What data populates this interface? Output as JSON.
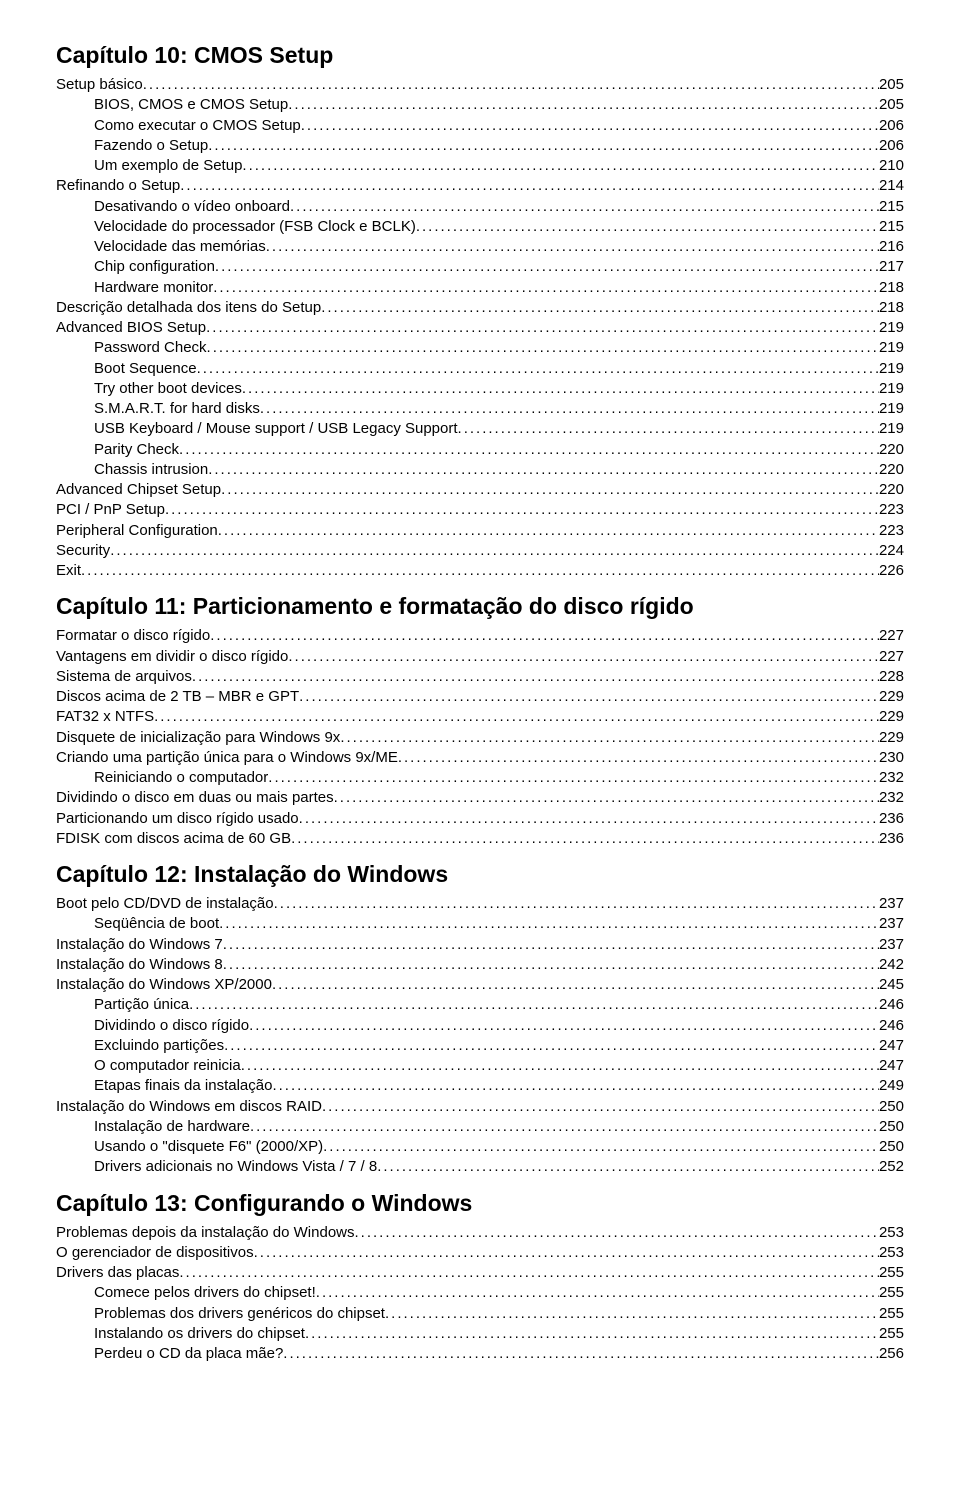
{
  "chapters": [
    {
      "title": "Capítulo 10: CMOS Setup",
      "entries": [
        {
          "label": "Setup básico",
          "page": "205",
          "level": 0
        },
        {
          "label": "BIOS, CMOS e CMOS Setup",
          "page": "205",
          "level": 1
        },
        {
          "label": "Como executar o CMOS Setup",
          "page": "206",
          "level": 1
        },
        {
          "label": "Fazendo o Setup",
          "page": "206",
          "level": 1
        },
        {
          "label": "Um exemplo de Setup",
          "page": "210",
          "level": 1
        },
        {
          "label": "Refinando o Setup",
          "page": "214",
          "level": 0
        },
        {
          "label": "Desativando o vídeo onboard",
          "page": "215",
          "level": 1
        },
        {
          "label": "Velocidade do processador (FSB Clock e BCLK)",
          "page": "215",
          "level": 1
        },
        {
          "label": "Velocidade das memórias",
          "page": "216",
          "level": 1
        },
        {
          "label": "Chip configuration",
          "page": "217",
          "level": 1
        },
        {
          "label": "Hardware monitor",
          "page": "218",
          "level": 1
        },
        {
          "label": "Descrição detalhada dos itens do Setup",
          "page": "218",
          "level": 0
        },
        {
          "label": "Advanced BIOS Setup",
          "page": "219",
          "level": 0
        },
        {
          "label": "Password Check",
          "page": "219",
          "level": 1
        },
        {
          "label": "Boot Sequence",
          "page": "219",
          "level": 1
        },
        {
          "label": "Try other boot devices",
          "page": "219",
          "level": 1
        },
        {
          "label": "S.M.A.R.T. for hard disks",
          "page": "219",
          "level": 1
        },
        {
          "label": "USB Keyboard / Mouse support / USB Legacy Support",
          "page": "219",
          "level": 1
        },
        {
          "label": "Parity Check",
          "page": "220",
          "level": 1
        },
        {
          "label": "Chassis intrusion",
          "page": "220",
          "level": 1
        },
        {
          "label": "Advanced Chipset Setup",
          "page": "220",
          "level": 0
        },
        {
          "label": "PCI / PnP Setup",
          "page": "223",
          "level": 0
        },
        {
          "label": "Peripheral Configuration",
          "page": "223",
          "level": 0
        },
        {
          "label": "Security",
          "page": "224",
          "level": 0
        },
        {
          "label": "Exit",
          "page": "226",
          "level": 0
        }
      ]
    },
    {
      "title": "Capítulo 11: Particionamento e formatação do disco rígido",
      "entries": [
        {
          "label": "Formatar o disco rígido",
          "page": "227",
          "level": 0
        },
        {
          "label": "Vantagens em dividir o disco rígido",
          "page": "227",
          "level": 0
        },
        {
          "label": "Sistema de arquivos",
          "page": "228",
          "level": 0
        },
        {
          "label": "Discos acima de 2 TB – MBR e GPT",
          "page": "229",
          "level": 0
        },
        {
          "label": "FAT32 x NTFS",
          "page": "229",
          "level": 0
        },
        {
          "label": "Disquete de inicialização para Windows 9x",
          "page": "229",
          "level": 0
        },
        {
          "label": "Criando uma partição única para o Windows 9x/ME",
          "page": "230",
          "level": 0
        },
        {
          "label": "Reiniciando o computador",
          "page": "232",
          "level": 1
        },
        {
          "label": "Dividindo o disco em duas ou mais partes",
          "page": "232",
          "level": 0
        },
        {
          "label": "Particionando um disco rígido usado",
          "page": "236",
          "level": 0
        },
        {
          "label": "FDISK com discos acima de 60 GB",
          "page": "236",
          "level": 0
        }
      ]
    },
    {
      "title": "Capítulo 12: Instalação do Windows",
      "entries": [
        {
          "label": "Boot pelo CD/DVD de instalação",
          "page": "237",
          "level": 0
        },
        {
          "label": "Seqüência de boot",
          "page": "237",
          "level": 1
        },
        {
          "label": "Instalação do Windows 7",
          "page": "237",
          "level": 0
        },
        {
          "label": "Instalação do Windows 8",
          "page": "242",
          "level": 0
        },
        {
          "label": "Instalação do Windows XP/2000",
          "page": "245",
          "level": 0
        },
        {
          "label": "Partição única",
          "page": "246",
          "level": 1
        },
        {
          "label": "Dividindo o disco rígido",
          "page": "246",
          "level": 1
        },
        {
          "label": "Excluindo partições",
          "page": "247",
          "level": 1
        },
        {
          "label": "O computador reinicia",
          "page": "247",
          "level": 1
        },
        {
          "label": "Etapas finais da instalação",
          "page": "249",
          "level": 1
        },
        {
          "label": "Instalação do Windows em discos RAID",
          "page": "250",
          "level": 0
        },
        {
          "label": "Instalação de hardware",
          "page": "250",
          "level": 1
        },
        {
          "label": "Usando o \"disquete F6\" (2000/XP)",
          "page": "250",
          "level": 1
        },
        {
          "label": "Drivers adicionais no Windows Vista / 7 / 8",
          "page": "252",
          "level": 1
        }
      ]
    },
    {
      "title": "Capítulo 13: Configurando o Windows",
      "entries": [
        {
          "label": "Problemas depois da instalação do Windows",
          "page": "253",
          "level": 0
        },
        {
          "label": "O gerenciador de dispositivos",
          "page": "253",
          "level": 0
        },
        {
          "label": "Drivers das placas",
          "page": "255",
          "level": 0
        },
        {
          "label": "Comece pelos drivers do chipset!",
          "page": "255",
          "level": 1
        },
        {
          "label": "Problemas dos drivers genéricos do chipset",
          "page": "255",
          "level": 1
        },
        {
          "label": "Instalando os drivers do chipset",
          "page": "255",
          "level": 1
        },
        {
          "label": "Perdeu o CD da placa mãe?",
          "page": "256",
          "level": 1
        }
      ]
    }
  ]
}
